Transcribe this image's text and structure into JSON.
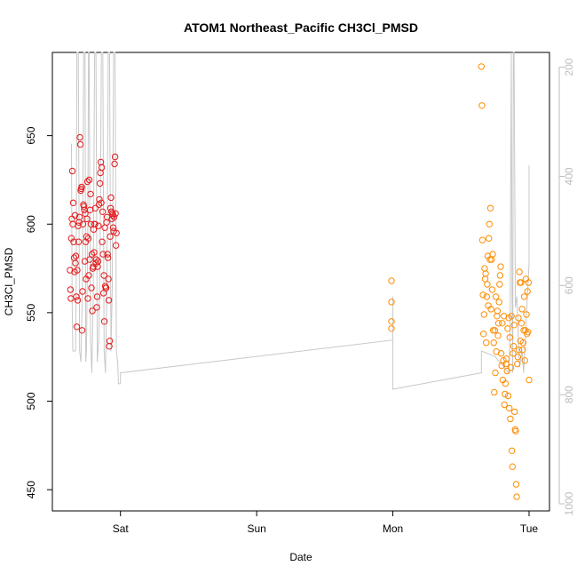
{
  "chart_data": {
    "type": "scatter",
    "title": "ATOM1 Northeast_Pacific CH3Cl_PMSD",
    "xlabel": "Date",
    "ylabel": "CH3Cl_PMSD",
    "x_ticks": [
      "Sat",
      "Sun",
      "Mon",
      "Tue"
    ],
    "x_tick_positions": [
      3,
      4,
      5,
      6
    ],
    "xlim": [
      2.5,
      6.15
    ],
    "ylim": [
      438,
      697
    ],
    "y_ticks": [
      450,
      500,
      550,
      600,
      650
    ],
    "y2_ticks": [
      200,
      400,
      600,
      800,
      1000
    ],
    "y2lim": [
      1013,
      173
    ],
    "grid": false,
    "colors": {
      "series_red": "#e41a1c",
      "series_orange": "#ff8c00",
      "secondary_line": "#c8c8c8",
      "secondary_axis": "#bdbdbd"
    },
    "series": [
      {
        "color": "#e41a1c",
        "x_start": 2.63,
        "x_end": 2.97,
        "values": [
          574,
          563,
          558,
          592,
          603,
          630,
          600,
          612,
          590,
          581,
          573,
          605,
          578,
          582,
          559,
          542,
          574,
          557,
          599,
          590,
          601,
          604,
          649,
          645,
          619,
          620,
          621,
          540,
          562,
          600,
          611,
          610,
          608,
          579,
          606,
          590,
          569,
          593,
          603,
          624,
          558,
          592,
          571,
          625,
          580,
          608,
          617,
          600,
          564,
          583,
          551,
          575,
          576,
          597,
          584,
          600,
          600,
          609,
          578,
          580,
          553,
          559,
          576,
          579,
          599,
          611,
          614,
          623,
          629,
          635,
          612,
          632,
          590,
          607,
          583,
          561,
          571,
          545,
          598,
          565,
          564,
          564,
          601,
          604,
          583,
          581,
          569,
          557,
          531,
          534,
          593,
          609,
          615,
          607,
          603,
          606,
          605,
          598,
          596,
          604,
          634,
          638,
          606,
          588,
          595
        ]
      },
      {
        "color": "#ff8c00",
        "x_start": 4.99,
        "x_end": 4.99,
        "values": [
          568,
          556,
          545,
          541
        ]
      },
      {
        "color": "#ff8c00",
        "x_start": 5.65,
        "x_end": 6.0,
        "values": [
          689,
          667,
          591,
          560,
          538,
          549,
          575,
          569,
          572,
          533,
          559,
          566,
          582,
          554,
          592,
          600,
          580,
          609,
          552,
          580,
          563,
          583,
          540,
          533,
          505,
          540,
          516,
          559,
          528,
          548,
          551,
          537,
          544,
          556,
          566,
          571,
          576,
          527,
          520,
          544,
          512,
          523,
          548,
          498,
          504,
          510,
          521,
          524,
          517,
          541,
          503,
          547,
          496,
          536,
          490,
          519,
          548,
          472,
          463,
          527,
          531,
          543,
          494,
          484,
          483,
          453,
          446,
          521,
          525,
          547,
          529,
          573,
          567,
          534,
          567,
          544,
          552,
          529,
          533,
          540,
          559,
          523,
          540,
          569,
          549,
          538,
          562,
          539,
          567,
          512
        ]
      }
    ],
    "secondary_line": {
      "axis": "right",
      "x": [
        2.64,
        2.645,
        2.65,
        2.67,
        2.675,
        2.68,
        2.69,
        2.7,
        2.71,
        2.72,
        2.73,
        2.74,
        2.745,
        2.75,
        2.76,
        2.765,
        2.77,
        2.78,
        2.79,
        2.8,
        2.81,
        2.82,
        2.83,
        2.84,
        2.85,
        2.86,
        2.87,
        2.88,
        2.89,
        2.9,
        2.91,
        2.92,
        2.93,
        2.94,
        2.95,
        2.96,
        2.97,
        2.98,
        2.985,
        2.99,
        3.0,
        3.0,
        5.0,
        5.0,
        5.0,
        5.65,
        5.65,
        5.75,
        5.8,
        5.85,
        5.86,
        5.87,
        5.875,
        5.88,
        5.885,
        5.89,
        5.9,
        5.91,
        5.93,
        5.95,
        5.96,
        6.0,
        6.0
      ],
      "y": [
        340,
        620,
        720,
        720,
        600,
        173,
        173,
        720,
        740,
        600,
        173,
        173,
        740,
        720,
        500,
        173,
        173,
        700,
        760,
        620,
        173,
        173,
        740,
        700,
        550,
        173,
        173,
        720,
        760,
        600,
        173,
        173,
        720,
        600,
        173,
        173,
        720,
        740,
        780,
        780,
        780,
        760,
        700,
        620,
        790,
        760,
        720,
        730,
        745,
        760,
        700,
        173,
        620,
        760,
        173,
        173,
        640,
        620,
        750,
        720,
        760,
        560,
        380
      ]
    }
  }
}
